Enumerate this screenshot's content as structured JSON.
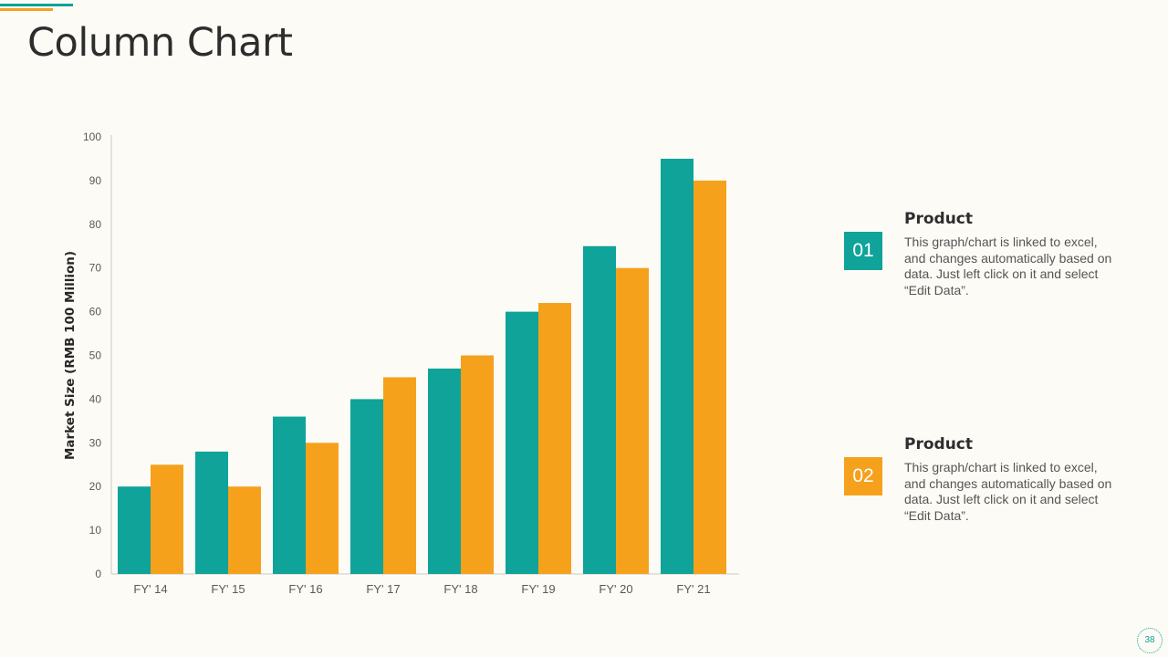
{
  "page": {
    "title": "Column Chart",
    "page_number": "38"
  },
  "colors": {
    "teal": "#0fa39a",
    "orange": "#f5a11c"
  },
  "legend": [
    {
      "number": "01",
      "title": "Product",
      "description": "This graph/chart is linked to excel, and changes automatically based on data. Just left click on it and select “Edit Data”."
    },
    {
      "number": "02",
      "title": "Product",
      "description": "This graph/chart is linked to excel, and changes automatically based on data. Just left click on it and select “Edit Data”."
    }
  ],
  "chart_data": {
    "type": "bar",
    "title": "",
    "xlabel": "",
    "ylabel": "Market Size (RMB 100 Million)",
    "ylim": [
      0,
      100
    ],
    "yticks": [
      0,
      10,
      20,
      30,
      40,
      50,
      60,
      70,
      80,
      90,
      100
    ],
    "categories": [
      "FY' 14",
      "FY' 15",
      "FY' 16",
      "FY' 17",
      "FY' 18",
      "FY' 19",
      "FY' 20",
      "FY' 21"
    ],
    "series": [
      {
        "name": "Product 01",
        "color": "#0fa39a",
        "values": [
          20,
          28,
          36,
          40,
          47,
          60,
          75,
          95
        ]
      },
      {
        "name": "Product 02",
        "color": "#f5a11c",
        "values": [
          25,
          20,
          30,
          45,
          50,
          62,
          70,
          90
        ]
      }
    ],
    "grid": false,
    "legend": "right"
  }
}
